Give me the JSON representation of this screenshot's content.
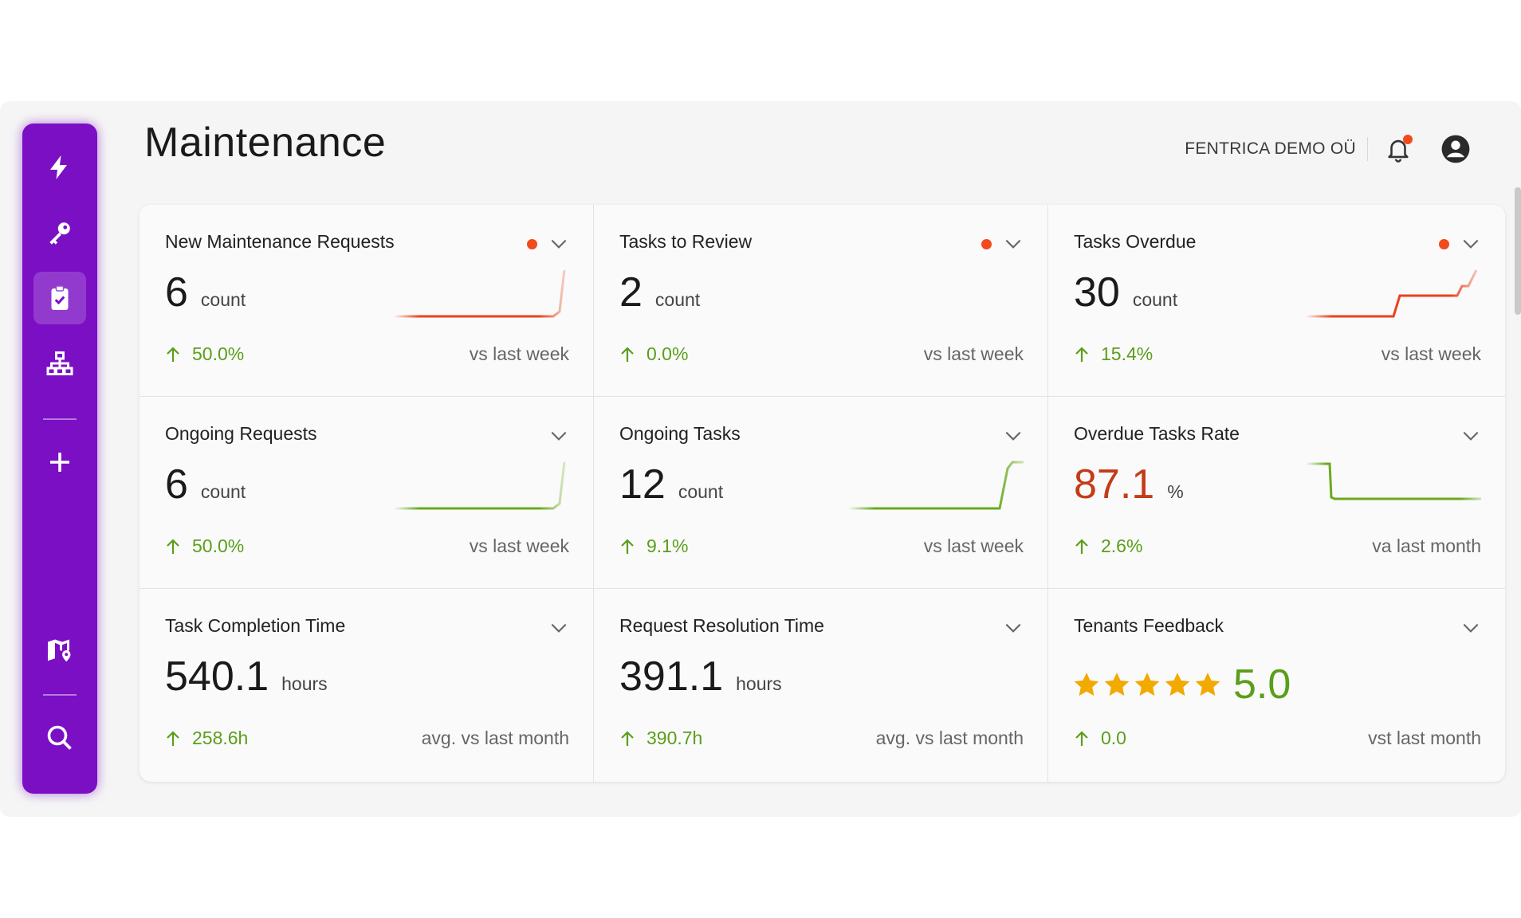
{
  "page": {
    "title": "Maintenance"
  },
  "header": {
    "org_name": "FENTRICA DEMO OÜ",
    "notification_dot": true
  },
  "colors": {
    "sidebar": "#7b0fc4",
    "accent_orange": "#f04a1d",
    "positive_green": "#5a9e1a",
    "alert_red": "#c43b18",
    "star_gold": "#f2a900"
  },
  "sidebar": {
    "items": [
      {
        "icon": "lightning-icon"
      },
      {
        "icon": "key-icon"
      },
      {
        "icon": "clipboard-check-icon",
        "active": true
      },
      {
        "icon": "network-icon"
      },
      {
        "icon": "plus-icon"
      },
      {
        "icon": "map-pin-icon"
      },
      {
        "icon": "search-icon"
      }
    ]
  },
  "cards": [
    {
      "title": "New Maintenance Requests",
      "value": "6",
      "unit": "count",
      "change": "50.0%",
      "compare": "vs last week",
      "alert_dot": true
    },
    {
      "title": "Tasks to Review",
      "value": "2",
      "unit": "count",
      "change": "0.0%",
      "compare": "vs last week",
      "alert_dot": true
    },
    {
      "title": "Tasks Overdue",
      "value": "30",
      "unit": "count",
      "change": "15.4%",
      "compare": "vs last week",
      "alert_dot": true
    },
    {
      "title": "Ongoing Requests",
      "value": "6",
      "unit": "count",
      "change": "50.0%",
      "compare": "vs last week",
      "alert_dot": false
    },
    {
      "title": "Ongoing Tasks",
      "value": "12",
      "unit": "count",
      "change": "9.1%",
      "compare": "vs last week",
      "alert_dot": false
    },
    {
      "title": "Overdue Tasks Rate",
      "value": "87.1",
      "unit": "%",
      "change": "2.6%",
      "compare": "va last month",
      "alert_dot": false
    },
    {
      "title": "Task Completion Time",
      "value": "540.1",
      "unit": "hours",
      "change": "258.6h",
      "compare": "avg. vs last month",
      "alert_dot": false
    },
    {
      "title": "Request Resolution Time",
      "value": "391.1",
      "unit": "hours",
      "change": "390.7h",
      "compare": "avg. vs last month",
      "alert_dot": false
    },
    {
      "title": "Tenants Feedback",
      "rating": "5.0",
      "stars": 5,
      "change": "0.0",
      "compare": "vst last month",
      "alert_dot": false
    }
  ]
}
